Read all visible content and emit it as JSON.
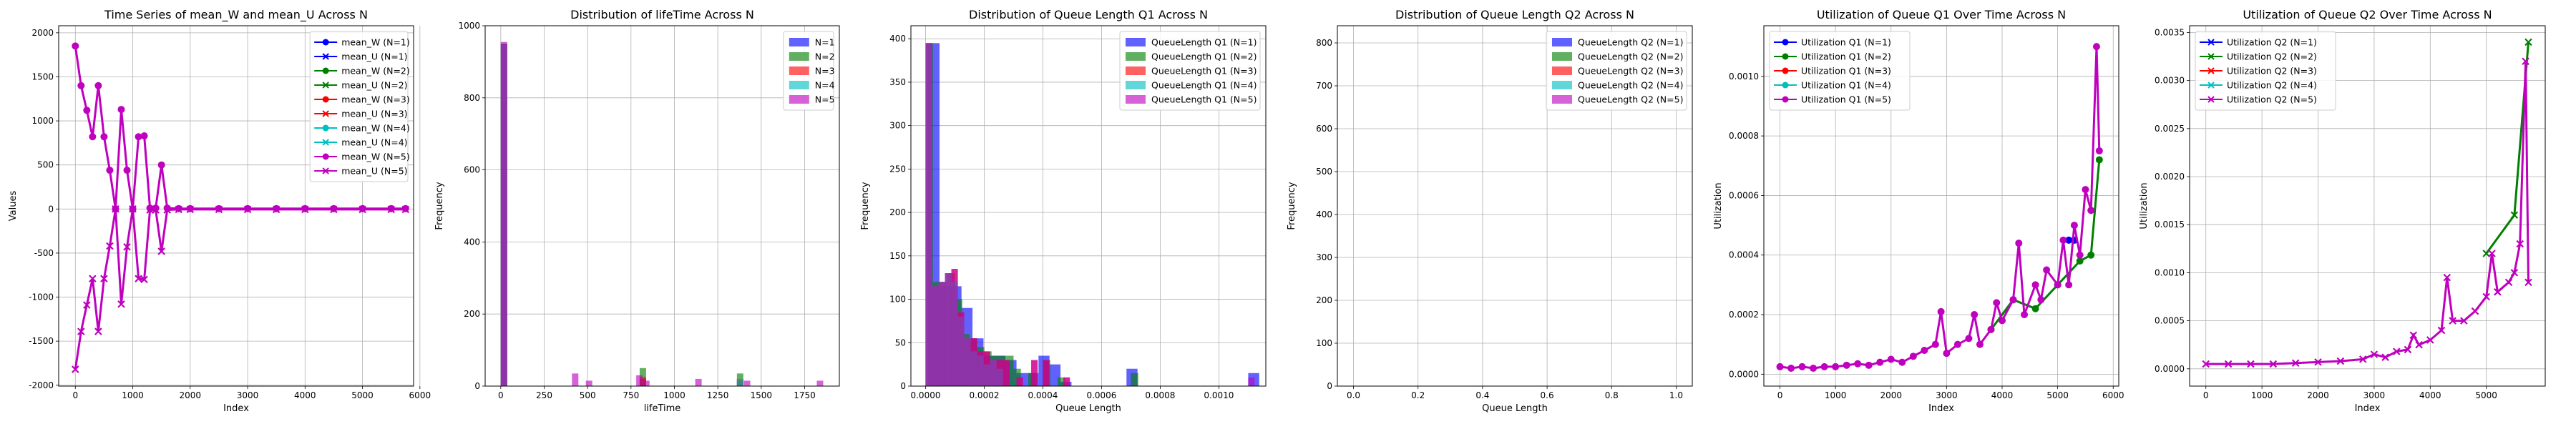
{
  "chart_data": [
    {
      "type": "line",
      "title": "Time Series of mean_W and mean_U Across N",
      "xlabel": "Index",
      "ylabel": "Values",
      "xlim": [
        -290,
        5890
      ],
      "ylim": [
        -2010,
        2080
      ],
      "xticks": [
        0,
        1000,
        2000,
        3000,
        4000,
        5000,
        6000
      ],
      "yticks": [
        -2000,
        -1500,
        -1000,
        -500,
        0,
        500,
        1000,
        1500,
        2000
      ],
      "grid": true,
      "legend_position": "upper right",
      "series": [
        {
          "name": "mean_W (N=1)",
          "color": "#0000ff",
          "marker": "o"
        },
        {
          "name": "mean_U (N=1)",
          "color": "#0000ff",
          "marker": "x"
        },
        {
          "name": "mean_W (N=2)",
          "color": "#008000",
          "marker": "o"
        },
        {
          "name": "mean_U (N=2)",
          "color": "#008000",
          "marker": "x"
        },
        {
          "name": "mean_W (N=3)",
          "color": "#ff0000",
          "marker": "o"
        },
        {
          "name": "mean_U (N=3)",
          "color": "#ff0000",
          "marker": "x"
        },
        {
          "name": "mean_W (N=4)",
          "color": "#00bfbf",
          "marker": "o"
        },
        {
          "name": "mean_U (N=4)",
          "color": "#00bfbf",
          "marker": "x"
        },
        {
          "name": "mean_W (N=5)",
          "color": "#bf00bf",
          "marker": "o",
          "x": [
            0,
            100,
            200,
            300,
            400,
            500,
            600,
            700,
            800,
            900,
            1000,
            1100,
            1200,
            1300,
            1400,
            1500,
            1600,
            1800,
            2000,
            2500,
            3000,
            3500,
            4000,
            4500,
            5000,
            5500,
            5750
          ],
          "y": [
            1850,
            1400,
            1120,
            820,
            1400,
            820,
            440,
            0,
            1130,
            440,
            0,
            820,
            830,
            10,
            10,
            500,
            10,
            5,
            5,
            5,
            5,
            5,
            5,
            5,
            5,
            5,
            5
          ]
        },
        {
          "name": "mean_U (N=5)",
          "color": "#bf00bf",
          "marker": "x",
          "x": [
            0,
            100,
            200,
            300,
            400,
            500,
            600,
            700,
            800,
            900,
            1000,
            1100,
            1200,
            1300,
            1400,
            1500,
            1600,
            1800,
            2000,
            2500,
            3000,
            3500,
            4000,
            4500,
            5000,
            5500,
            5750
          ],
          "y": [
            -1820,
            -1390,
            -1090,
            -790,
            -1390,
            -790,
            -420,
            0,
            -1080,
            -430,
            0,
            -790,
            -800,
            -10,
            -10,
            -480,
            -10,
            -5,
            -5,
            -5,
            -5,
            -5,
            -5,
            -5,
            -5,
            -5,
            -5
          ]
        }
      ]
    },
    {
      "type": "bar",
      "title": "Distribution of lifeTime Across N",
      "xlabel": "lifeTime",
      "ylabel": "Frequency",
      "xlim": [
        -90,
        1950
      ],
      "ylim": [
        0,
        1000
      ],
      "xticks": [
        0,
        250,
        500,
        750,
        1000,
        1250,
        1500,
        1750
      ],
      "yticks": [
        0,
        200,
        400,
        600,
        800,
        1000
      ],
      "grid": true,
      "legend_position": "upper right",
      "bin_width": 37,
      "series": [
        {
          "name": "N=1",
          "color": "#0000ff",
          "bins": [
            0,
            800,
            1360
          ],
          "values": [
            950,
            20,
            15
          ]
        },
        {
          "name": "N=2",
          "color": "#008000",
          "bins": [
            0,
            800,
            1360
          ],
          "values": [
            950,
            50,
            35
          ]
        },
        {
          "name": "N=3",
          "color": "#ff0000",
          "bins": [
            0,
            800,
            1360
          ],
          "values": [
            950,
            25,
            20
          ]
        },
        {
          "name": "N=4",
          "color": "#00bfbf",
          "bins": [
            0,
            1360
          ],
          "values": [
            950,
            20
          ]
        },
        {
          "name": "N=5",
          "color": "#bf00bf",
          "bins": [
            0,
            410,
            490,
            780,
            820,
            1120,
            1400,
            1820
          ],
          "values": [
            955,
            35,
            15,
            30,
            15,
            20,
            15,
            15
          ]
        }
      ]
    },
    {
      "type": "bar",
      "title": "Distribution of Queue Length Q1 Across N",
      "xlabel": "Queue Length",
      "ylabel": "Frequency",
      "xlim": [
        -5e-05,
        0.00116
      ],
      "ylim": [
        0,
        415
      ],
      "xticks": [
        0.0,
        0.0002,
        0.0004,
        0.0006,
        0.0008,
        0.001
      ],
      "xtick_labels": [
        "0.0000",
        "0.0002",
        "0.0004",
        "0.0006",
        "0.0008",
        "0.0010"
      ],
      "yticks": [
        0,
        50,
        100,
        150,
        200,
        250,
        300,
        350,
        400
      ],
      "grid": true,
      "legend_position": "upper right",
      "series": [
        {
          "name": "QueueLength Q1 (N=1)",
          "color": "#0000ff",
          "bin_width": 3.75e-05,
          "bins": [
            1e-05,
            4.75e-05,
            8.5e-05,
            0.0001225,
            0.00016,
            0.0001975,
            0.000235,
            0.0002725,
            0.00031,
            0.0003475,
            0.000385,
            0.0004225,
            0.00046,
            0.000685,
            0.0011
          ],
          "values": [
            395,
            115,
            115,
            90,
            55,
            35,
            35,
            30,
            15,
            15,
            35,
            25,
            5,
            20,
            15
          ]
        },
        {
          "name": "QueueLength Q1 (N=2)",
          "color": "#008000",
          "bin_width": 2.5e-05,
          "bins": [
            0.0,
            2.5e-05,
            5e-05,
            7.5e-05,
            0.0001,
            0.000125,
            0.00015,
            0.000175,
            0.0002,
            0.000225,
            0.00025,
            0.000275,
            0.0003,
            0.00035,
            0.0004,
            0.00045,
            0.0007
          ],
          "values": [
            395,
            120,
            120,
            130,
            100,
            60,
            55,
            45,
            40,
            35,
            35,
            35,
            20,
            15,
            30,
            10,
            15
          ]
        },
        {
          "name": "QueueLength Q1 (N=3)",
          "color": "#ff0000",
          "bin_width": 2.2e-05,
          "bins": [
            0.0,
            2.2e-05,
            4.4e-05,
            6.6e-05,
            8.8e-05,
            0.00011,
            0.000132,
            0.000154,
            0.000176,
            0.000198,
            0.00022,
            0.000242,
            0.000264,
            0.00031,
            0.00036,
            0.0004,
            0.00047
          ],
          "values": [
            395,
            115,
            120,
            130,
            135,
            85,
            55,
            55,
            40,
            40,
            30,
            30,
            30,
            10,
            30,
            30,
            10
          ]
        },
        {
          "name": "QueueLength Q1 (N=4)",
          "color": "#00bfbf",
          "bin_width": 2.2e-05,
          "bins": [
            0.0,
            2.2e-05,
            4.4e-05,
            6.6e-05,
            8.8e-05,
            0.00011,
            0.000132,
            0.000154,
            0.000176,
            0.000198,
            0.00022,
            0.000242
          ],
          "values": [
            395,
            115,
            120,
            130,
            120,
            80,
            55,
            40,
            35,
            25,
            30,
            20
          ]
        },
        {
          "name": "QueueLength Q1 (N=5)",
          "color": "#bf00bf",
          "bin_width": 2.2e-05,
          "bins": [
            0.0,
            2.2e-05,
            4.4e-05,
            6.6e-05,
            8.8e-05,
            0.00011,
            0.000132,
            0.000154,
            0.000176,
            0.000198,
            0.00022,
            0.000242,
            0.000264,
            0.00031,
            0.00036,
            0.0004,
            0.00047,
            0.0011
          ],
          "values": [
            395,
            115,
            120,
            130,
            135,
            85,
            55,
            55,
            40,
            40,
            30,
            30,
            30,
            10,
            30,
            30,
            10,
            10
          ]
        }
      ]
    },
    {
      "type": "bar",
      "title": "Distribution of Queue Length Q2 Across N",
      "xlabel": "Queue Length",
      "ylabel": "Frequency",
      "xlim": [
        -0.05,
        1.05
      ],
      "ylim": [
        0,
        840
      ],
      "xticks": [
        0.0,
        0.2,
        0.4,
        0.6,
        0.8,
        1.0
      ],
      "xtick_labels": [
        "0.0",
        "0.2",
        "0.4",
        "0.6",
        "0.8",
        "1.0"
      ],
      "yticks": [
        0,
        100,
        200,
        300,
        400,
        500,
        600,
        700,
        800
      ],
      "grid": true,
      "legend_position": "upper right",
      "series": [
        {
          "name": "QueueLength Q2 (N=1)",
          "color": "#0000ff",
          "bins": [],
          "values": []
        },
        {
          "name": "QueueLength Q2 (N=2)",
          "color": "#008000",
          "bins": [],
          "values": []
        },
        {
          "name": "QueueLength Q2 (N=3)",
          "color": "#ff0000",
          "bins": [],
          "values": []
        },
        {
          "name": "QueueLength Q2 (N=4)",
          "color": "#00bfbf",
          "bins": [],
          "values": []
        },
        {
          "name": "QueueLength Q2 (N=5)",
          "color": "#bf00bf",
          "bins": [],
          "values": []
        }
      ]
    },
    {
      "type": "line",
      "title": "Utilization of Queue Q1 Over Time Across N",
      "xlabel": "Index",
      "ylabel": "Utilization",
      "xlim": [
        -290,
        6100
      ],
      "ylim": [
        -4e-05,
        0.00117
      ],
      "xticks": [
        0,
        1000,
        2000,
        3000,
        4000,
        5000,
        6000
      ],
      "yticks": [
        0.0,
        0.0002,
        0.0004,
        0.0006,
        0.0008,
        0.001
      ],
      "ytick_labels": [
        "0.0000",
        "0.0002",
        "0.0004",
        "0.0006",
        "0.0008",
        "0.0010"
      ],
      "grid": true,
      "legend_position": "upper left",
      "series": [
        {
          "name": "Utilization Q1 (N=1)",
          "color": "#0000ff",
          "marker": "o",
          "x": [
            5200,
            5300
          ],
          "y": [
            0.00045,
            0.00045
          ]
        },
        {
          "name": "Utilization Q1 (N=2)",
          "color": "#008000",
          "marker": "o",
          "x": [
            3800,
            4200,
            4600,
            5000,
            5400,
            5600,
            5750
          ],
          "y": [
            0.00015,
            0.00025,
            0.00022,
            0.0003,
            0.00038,
            0.0004,
            0.00072
          ]
        },
        {
          "name": "Utilization Q1 (N=3)",
          "color": "#ff0000",
          "marker": "o",
          "x": [],
          "y": []
        },
        {
          "name": "Utilization Q1 (N=4)",
          "color": "#00bfbf",
          "marker": "o",
          "x": [],
          "y": []
        },
        {
          "name": "Utilization Q1 (N=5)",
          "color": "#bf00bf",
          "marker": "o",
          "x": [
            0,
            200,
            400,
            600,
            800,
            1000,
            1200,
            1400,
            1600,
            1800,
            2000,
            2200,
            2400,
            2600,
            2800,
            2900,
            3000,
            3200,
            3400,
            3500,
            3600,
            3800,
            3900,
            4000,
            4200,
            4300,
            4400,
            4600,
            4700,
            4800,
            5000,
            5100,
            5200,
            5300,
            5400,
            5500,
            5600,
            5700,
            5750
          ],
          "y": [
            2.5e-05,
            2e-05,
            2.5e-05,
            2e-05,
            2.5e-05,
            2.5e-05,
            3e-05,
            3.5e-05,
            3e-05,
            4e-05,
            5e-05,
            4e-05,
            6e-05,
            8e-05,
            0.0001,
            0.00021,
            7e-05,
            0.0001,
            0.00012,
            0.0002,
            0.0001,
            0.00015,
            0.00024,
            0.00018,
            0.00025,
            0.00044,
            0.0002,
            0.0003,
            0.00025,
            0.00035,
            0.0003,
            0.00045,
            0.0003,
            0.0005,
            0.0004,
            0.00062,
            0.00055,
            0.0011,
            0.00075
          ]
        }
      ]
    },
    {
      "type": "line",
      "title": "Utilization of Queue Q2 Over Time Across N",
      "xlabel": "Index",
      "ylabel": "Utilization",
      "xlim": [
        -290,
        6050
      ],
      "ylim": [
        -0.00018,
        0.00357
      ],
      "xticks": [
        0,
        1000,
        2000,
        3000,
        4000,
        5000
      ],
      "yticks": [
        0.0,
        0.0005,
        0.001,
        0.0015,
        0.002,
        0.0025,
        0.003,
        0.0035
      ],
      "ytick_labels": [
        "0.0000",
        "0.0005",
        "0.0010",
        "0.0015",
        "0.0020",
        "0.0025",
        "0.0030",
        "0.0035"
      ],
      "grid": true,
      "legend_position": "upper left",
      "series": [
        {
          "name": "Utilization Q2 (N=1)",
          "color": "#0000ff",
          "marker": "x",
          "x": [],
          "y": []
        },
        {
          "name": "Utilization Q2 (N=2)",
          "color": "#008000",
          "marker": "x",
          "x": [
            5000,
            5500,
            5750
          ],
          "y": [
            0.0012,
            0.0016,
            0.0034
          ]
        },
        {
          "name": "Utilization Q2 (N=3)",
          "color": "#ff0000",
          "marker": "x",
          "x": [],
          "y": []
        },
        {
          "name": "Utilization Q2 (N=4)",
          "color": "#00bfbf",
          "marker": "x",
          "x": [],
          "y": []
        },
        {
          "name": "Utilization Q2 (N=5)",
          "color": "#bf00bf",
          "marker": "x",
          "x": [
            0,
            400,
            800,
            1200,
            1600,
            2000,
            2400,
            2800,
            3000,
            3200,
            3400,
            3600,
            3700,
            3800,
            4000,
            4200,
            4300,
            4400,
            4600,
            4800,
            5000,
            5100,
            5200,
            5400,
            5500,
            5600,
            5700,
            5750
          ],
          "y": [
            5e-05,
            5e-05,
            5e-05,
            5e-05,
            6e-05,
            7e-05,
            8e-05,
            0.0001,
            0.00015,
            0.00012,
            0.00018,
            0.0002,
            0.00035,
            0.00025,
            0.0003,
            0.0004,
            0.00095,
            0.0005,
            0.0005,
            0.0006,
            0.00075,
            0.0012,
            0.0008,
            0.0009,
            0.001,
            0.0013,
            0.0032,
            0.0009
          ]
        }
      ]
    }
  ]
}
